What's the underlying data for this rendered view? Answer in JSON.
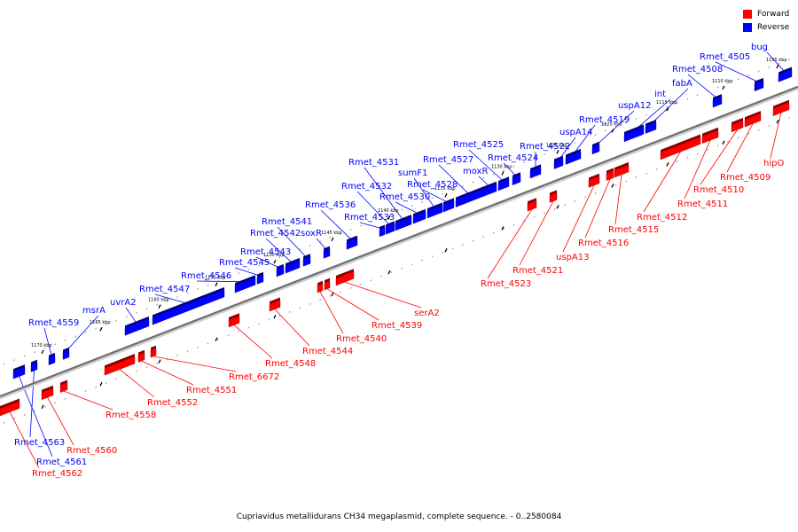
{
  "legend": {
    "forward_label": "Forward",
    "reverse_label": "Reverse",
    "forward_color": "#ff0000",
    "reverse_color": "#0000ff"
  },
  "caption": "Cupriavidus metallidurans CH34 megaplasmid, complete sequence. - 0..2580084",
  "colors": {
    "forward": "#ff0000",
    "reverse": "#0000ff",
    "backbone": "#808080"
  },
  "tick_labels": [
    "1105 kbp",
    "1110 kbp",
    "1115 kbp",
    "1120 kbp",
    "1125 kbp",
    "1130 kbp",
    "1135 kbp",
    "1140 kbp",
    "1145 kbp",
    "1150 kbp",
    "1155 kbp",
    "1160 kbp",
    "1165 kbp",
    "1170 kbp"
  ],
  "reverse_genes": [
    "bug",
    "Rmet_4505",
    "Rmet_4508",
    "fabA",
    "int",
    "uspA12",
    "Rmet_4519",
    "uspA14",
    "Rmet_4522",
    "Rmet_4524",
    "Rmet_4525",
    "moxR",
    "Rmet_4527",
    "Rmet_4528",
    "sumF1",
    "Rmet_4530",
    "Rmet_4531",
    "Rmet_4532",
    "Rmet_4533",
    "Rmet_4536",
    "soxR",
    "Rmet_4541",
    "Rmet_4542",
    "Rmet_4543",
    "Rmet_4545",
    "Rmet_4546",
    "Rmet_4547",
    "uvrA2",
    "msrA",
    "Rmet_4559",
    "Rmet_4563",
    "Rmet_4561"
  ],
  "forward_genes": [
    "hipO",
    "Rmet_4509",
    "Rmet_4510",
    "Rmet_4511",
    "Rmet_4512",
    "Rmet_4515",
    "Rmet_4516",
    "uspA13",
    "Rmet_4521",
    "Rmet_4523",
    "serA2",
    "Rmet_4539",
    "Rmet_4540",
    "Rmet_4544",
    "Rmet_4548",
    "Rmet_6672",
    "Rmet_4551",
    "Rmet_4552",
    "Rmet_4558",
    "Rmet_4560",
    "Rmet_4562"
  ]
}
